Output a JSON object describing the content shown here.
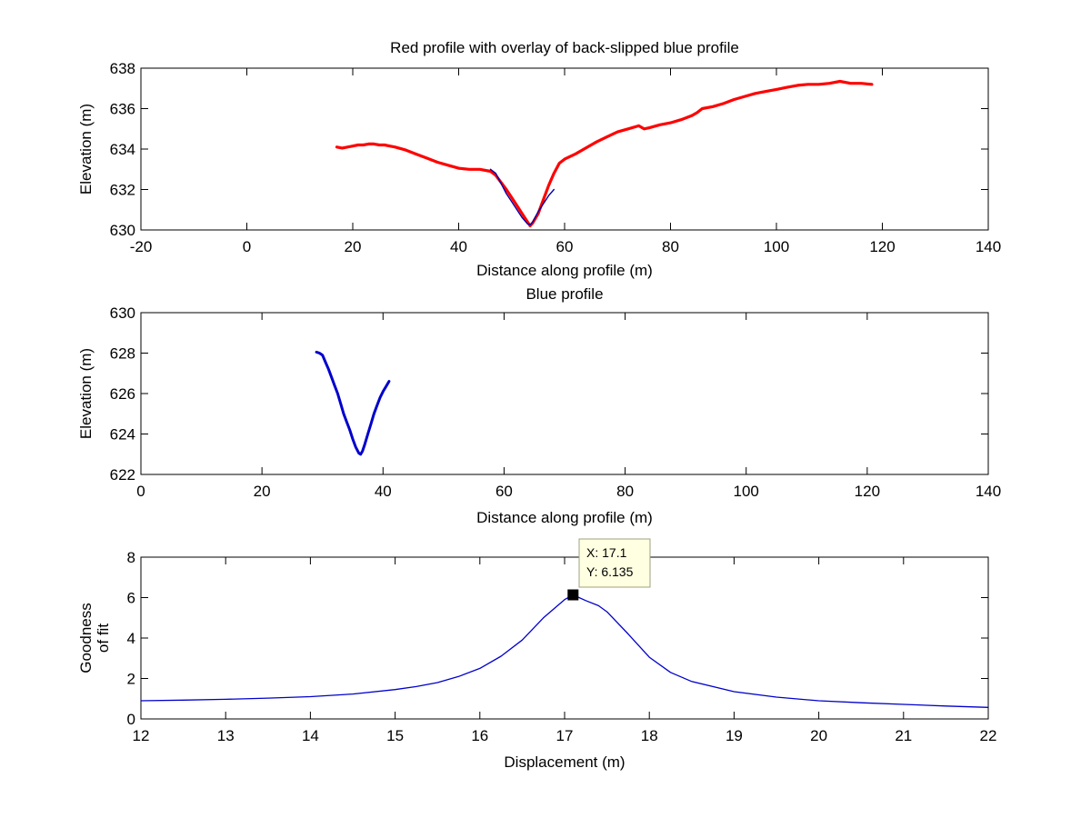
{
  "chart_data": [
    {
      "type": "line",
      "title": "Red profile with overlay of back-slipped blue profile",
      "xlabel": "Distance along profile (m)",
      "ylabel": "Elevation (m)",
      "xlim": [
        -20,
        140
      ],
      "ylim": [
        630,
        638
      ],
      "xticks": [
        -20,
        0,
        20,
        40,
        60,
        80,
        100,
        120,
        140
      ],
      "yticks": [
        630,
        632,
        634,
        636,
        638
      ],
      "grid": false,
      "series": [
        {
          "color": "#ff0000",
          "x": [
            17,
            18,
            19,
            20,
            21,
            22,
            23,
            24,
            25,
            26,
            27,
            28,
            30,
            32,
            34,
            36,
            38,
            40,
            42,
            44,
            46,
            47,
            48,
            49,
            50,
            51,
            52,
            53,
            53.5,
            54,
            55,
            56,
            57,
            58,
            59,
            60,
            62,
            64,
            66,
            68,
            70,
            72,
            74,
            75,
            76,
            78,
            80,
            82,
            84,
            85,
            86,
            88,
            90,
            92,
            94,
            96,
            98,
            100,
            102,
            104,
            106,
            108,
            110,
            112,
            114,
            116,
            118
          ],
          "y": [
            634.1,
            634.05,
            634.1,
            634.15,
            634.2,
            634.2,
            634.25,
            634.25,
            634.2,
            634.2,
            634.15,
            634.1,
            633.95,
            633.75,
            633.55,
            633.35,
            633.2,
            633.05,
            633.0,
            633.0,
            632.9,
            632.7,
            632.35,
            632.0,
            631.6,
            631.2,
            630.8,
            630.4,
            630.2,
            630.35,
            630.8,
            631.5,
            632.2,
            632.8,
            633.3,
            633.5,
            633.75,
            634.05,
            634.35,
            634.6,
            634.85,
            635.0,
            635.15,
            635.0,
            635.05,
            635.2,
            635.3,
            635.45,
            635.65,
            635.8,
            636.0,
            636.1,
            636.25,
            636.45,
            636.6,
            636.75,
            636.85,
            636.95,
            637.05,
            637.15,
            637.2,
            637.2,
            637.25,
            637.35,
            637.25,
            637.25,
            637.2
          ]
        },
        {
          "color": "#0000aa",
          "x": [
            46,
            47,
            48,
            49,
            50,
            51,
            52,
            53,
            53.5,
            54,
            55,
            56,
            57,
            58
          ],
          "y": [
            633.0,
            632.8,
            632.3,
            631.8,
            631.4,
            631.0,
            630.6,
            630.3,
            630.25,
            630.4,
            630.9,
            631.3,
            631.7,
            632.0
          ]
        }
      ]
    },
    {
      "type": "line",
      "title": "Blue profile",
      "xlabel": "Distance along profile (m)",
      "ylabel": "Elevation (m)",
      "xlim": [
        0,
        140
      ],
      "ylim": [
        622,
        630
      ],
      "xticks": [
        0,
        20,
        40,
        60,
        80,
        100,
        120,
        140
      ],
      "yticks": [
        622,
        624,
        626,
        628,
        630
      ],
      "grid": false,
      "series": [
        {
          "color": "#0000cc",
          "x": [
            29,
            29.5,
            30,
            30.5,
            31,
            31.5,
            32,
            32.5,
            33,
            33.5,
            34,
            34.5,
            35,
            35.5,
            36,
            36.3,
            36.6,
            37,
            37.5,
            38,
            38.5,
            39,
            39.5,
            40,
            40.5,
            41
          ],
          "y": [
            628.05,
            628.0,
            627.9,
            627.55,
            627.2,
            626.8,
            626.4,
            626.0,
            625.5,
            625.0,
            624.6,
            624.2,
            623.75,
            623.35,
            623.05,
            623.0,
            623.15,
            623.5,
            624.0,
            624.5,
            625.0,
            625.4,
            625.8,
            626.1,
            626.35,
            626.6
          ]
        }
      ]
    },
    {
      "type": "line",
      "title": "",
      "xlabel": "Displacement (m)",
      "ylabel": "Goodness of fit",
      "ylabel_lines": [
        "Goodness",
        "of fit"
      ],
      "xlim": [
        12,
        22
      ],
      "ylim": [
        0,
        8
      ],
      "xticks": [
        12,
        13,
        14,
        15,
        16,
        17,
        18,
        19,
        20,
        21,
        22
      ],
      "yticks": [
        0,
        2,
        4,
        6,
        8
      ],
      "grid": false,
      "series": [
        {
          "color": "#0000cc",
          "x": [
            12,
            12.5,
            13,
            13.5,
            14,
            14.5,
            15,
            15.25,
            15.5,
            15.75,
            16,
            16.25,
            16.5,
            16.75,
            17,
            17.1,
            17.25,
            17.4,
            17.5,
            17.75,
            18,
            18.25,
            18.5,
            19,
            19.5,
            20,
            20.5,
            21,
            21.5,
            22
          ],
          "y": [
            0.9,
            0.93,
            0.97,
            1.03,
            1.1,
            1.23,
            1.45,
            1.6,
            1.8,
            2.1,
            2.5,
            3.1,
            3.9,
            5.0,
            5.9,
            6.135,
            5.85,
            5.6,
            5.3,
            4.2,
            3.05,
            2.3,
            1.85,
            1.35,
            1.08,
            0.9,
            0.8,
            0.72,
            0.64,
            0.57
          ]
        }
      ],
      "datatip": {
        "x": 17.1,
        "y": 6.135,
        "line1": "X: 17.1",
        "line2": "Y: 6.135"
      }
    }
  ]
}
